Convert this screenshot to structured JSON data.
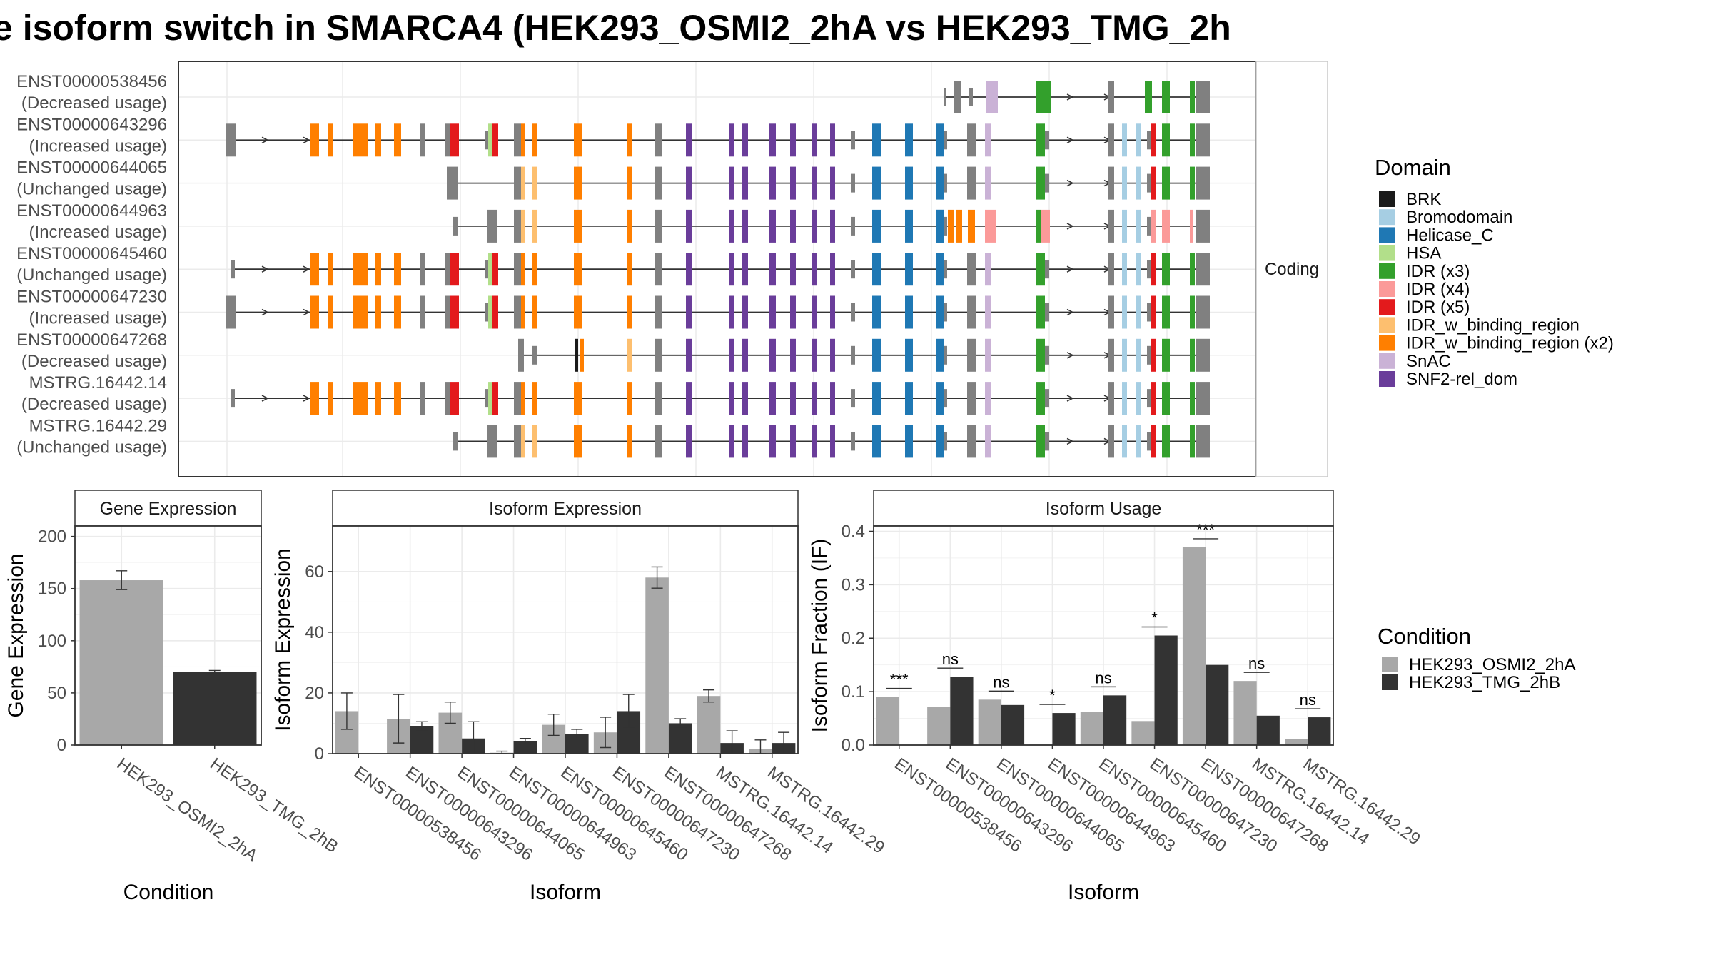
{
  "title": "e isoform switch in SMARCA4 (HEK293_OSMI2_2hA vs HEK293_TMG_2h",
  "colors": {
    "osmi": "#a8a8a8",
    "tmg": "#333333",
    "noncoding_gray": "#808080",
    "grid": "#ebebeb",
    "panel_border": "#333333",
    "strip_bg": "#ffffff"
  },
  "transcripts_panel": {
    "facet_label": "Coding",
    "isoforms": [
      {
        "id": "ENST00000538456",
        "status": "(Decreased usage)"
      },
      {
        "id": "ENST00000643296",
        "status": "(Increased usage)"
      },
      {
        "id": "ENST00000644065",
        "status": "(Unchanged usage)"
      },
      {
        "id": "ENST00000644963",
        "status": "(Increased usage)"
      },
      {
        "id": "ENST00000645460",
        "status": "(Unchanged usage)"
      },
      {
        "id": "ENST00000647230",
        "status": "(Increased usage)"
      },
      {
        "id": "ENST00000647268",
        "status": "(Decreased usage)"
      },
      {
        "id": "MSTRG.16442.14",
        "status": "(Decreased usage)"
      },
      {
        "id": "MSTRG.16442.29",
        "status": "(Unchanged usage)"
      }
    ]
  },
  "domain_legend": {
    "title": "Domain",
    "items": [
      {
        "label": "BRK",
        "color": "#1a1a1a"
      },
      {
        "label": "Bromodomain",
        "color": "#a6cee3"
      },
      {
        "label": "Helicase_C",
        "color": "#1f78b4"
      },
      {
        "label": "HSA",
        "color": "#b2df8a"
      },
      {
        "label": "IDR (x3)",
        "color": "#33a02c"
      },
      {
        "label": "IDR (x4)",
        "color": "#fb9a99"
      },
      {
        "label": "IDR (x5)",
        "color": "#e31a1c"
      },
      {
        "label": "IDR_w_binding_region",
        "color": "#fdbf6f"
      },
      {
        "label": "IDR_w_binding_region (x2)",
        "color": "#ff7f00"
      },
      {
        "label": "SnAC",
        "color": "#cab2d6"
      },
      {
        "label": "SNF2-rel_dom",
        "color": "#6a3d9a"
      }
    ]
  },
  "condition_legend": {
    "title": "Condition",
    "items": [
      {
        "label": "HEK293_OSMI2_2hA",
        "color": "#a8a8a8"
      },
      {
        "label": "HEK293_TMG_2hB",
        "color": "#333333"
      }
    ]
  },
  "chart_data": [
    {
      "type": "bar",
      "title": "Gene Expression",
      "xlabel": "Condition",
      "ylabel": "Gene Expression",
      "ylim": [
        0,
        210
      ],
      "yticks": [
        0,
        50,
        100,
        150,
        200
      ],
      "categories": [
        "HEK293_OSMI2_2hA",
        "HEK293_TMG_2hB"
      ],
      "values": [
        158,
        70
      ],
      "errors": [
        9,
        1.5
      ]
    },
    {
      "type": "bar",
      "title": "Isoform Expression",
      "xlabel": "Isoform",
      "ylabel": "Isoform Expression",
      "ylim": [
        0,
        75
      ],
      "yticks": [
        0,
        20,
        40,
        60
      ],
      "categories": [
        "ENST00000538456",
        "ENST00000643296",
        "ENST00000644065",
        "ENST00000644963",
        "ENST00000645460",
        "ENST00000647230",
        "ENST00000647268",
        "MSTRG.16442.14",
        "MSTRG.16442.29"
      ],
      "series": [
        {
          "name": "HEK293_OSMI2_2hA",
          "values": [
            14,
            11.5,
            13.5,
            0.3,
            9.5,
            7,
            58,
            19,
            1.5
          ],
          "errors": [
            6,
            8,
            3.5,
            0.5,
            3.5,
            5,
            3.5,
            2,
            3
          ]
        },
        {
          "name": "HEK293_TMG_2hB",
          "values": [
            0,
            9,
            5,
            4,
            6.5,
            14,
            10,
            3.5,
            3.5
          ],
          "errors": [
            0,
            1.5,
            5.5,
            1,
            1.5,
            5.5,
            1.5,
            4,
            3.5
          ]
        }
      ]
    },
    {
      "type": "bar",
      "title": "Isoform Usage",
      "xlabel": "Isoform",
      "ylabel": "Isoform Fraction (IF)",
      "ylim": [
        0,
        0.41
      ],
      "yticks": [
        0.0,
        0.1,
        0.2,
        0.3,
        0.4
      ],
      "ytick_labels": [
        "0.0",
        "0.1",
        "0.2",
        "0.3",
        "0.4"
      ],
      "categories": [
        "ENST00000538456",
        "ENST00000643296",
        "ENST00000644065",
        "ENST00000644963",
        "ENST00000645460",
        "ENST00000647230",
        "ENST00000647268",
        "MSTRG.16442.14",
        "MSTRG.16442.29"
      ],
      "series": [
        {
          "name": "HEK293_OSMI2_2hA",
          "values": [
            0.09,
            0.072,
            0.085,
            0.001,
            0.062,
            0.045,
            0.37,
            0.12,
            0.012
          ]
        },
        {
          "name": "HEK293_TMG_2hB",
          "values": [
            0.0,
            0.128,
            0.075,
            0.06,
            0.093,
            0.205,
            0.15,
            0.055,
            0.052
          ]
        }
      ],
      "significance": [
        "***",
        "ns",
        "ns",
        "*",
        "ns",
        "*",
        "***",
        "ns",
        "ns"
      ]
    }
  ]
}
